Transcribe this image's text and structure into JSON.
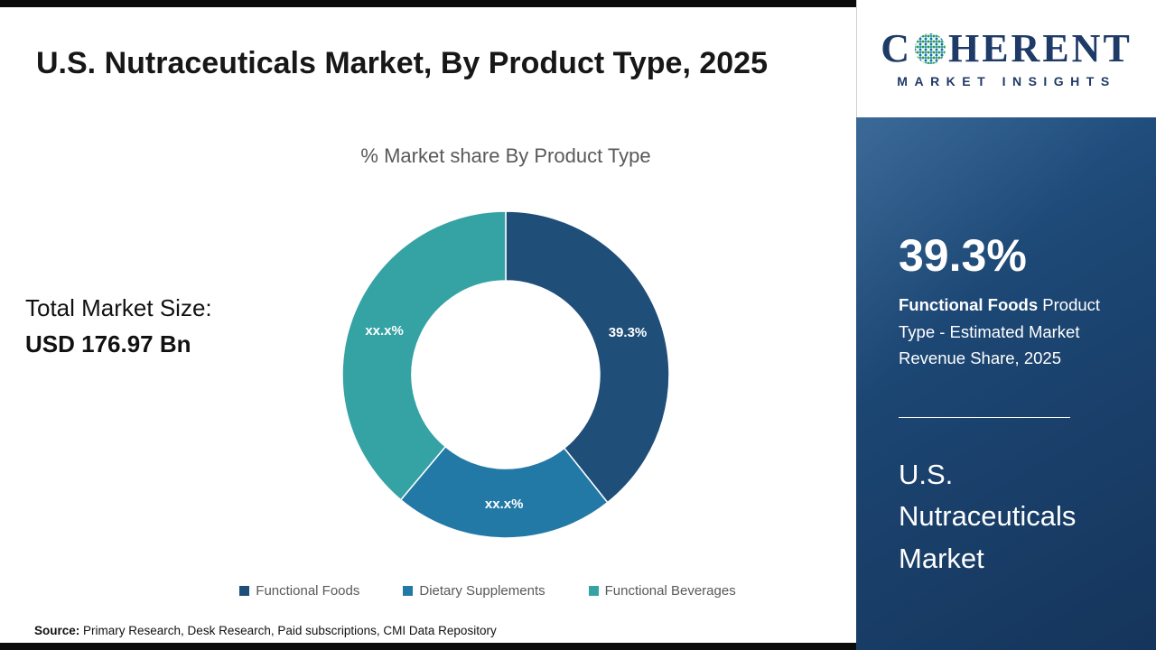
{
  "header": {
    "title": "U.S. Nutraceuticals Market, By Product Type, 2025"
  },
  "total": {
    "label": "Total Market Size:",
    "value": "USD 176.97 Bn"
  },
  "chart_data": {
    "type": "pie",
    "subtype": "donut",
    "title": "% Market share By Product Type",
    "categories": [
      "Functional Foods",
      "Dietary Supplements",
      "Functional Beverages"
    ],
    "values": [
      39.3,
      21.8,
      38.9
    ],
    "labels": [
      "39.3%",
      "xx.x%",
      "xx.x%"
    ],
    "colors": [
      "#1F4E79",
      "#2379A6",
      "#35A2A4"
    ],
    "legend_position": "bottom",
    "start_angle_deg": 0,
    "direction": "clockwise"
  },
  "source": {
    "label": "Source:",
    "text": "Primary Research, Desk Research, Paid subscriptions, CMI Data Repository"
  },
  "sidebar": {
    "logo": {
      "part1": "C",
      "part2": "HERENT",
      "subtitle": "MARKET INSIGHTS"
    },
    "stat": {
      "value": "39.3%",
      "bold": "Functional Foods",
      "rest": " Product Type - Estimated Market Revenue Share, 2025"
    },
    "market_name": "U.S. Nutraceuticals Market"
  }
}
